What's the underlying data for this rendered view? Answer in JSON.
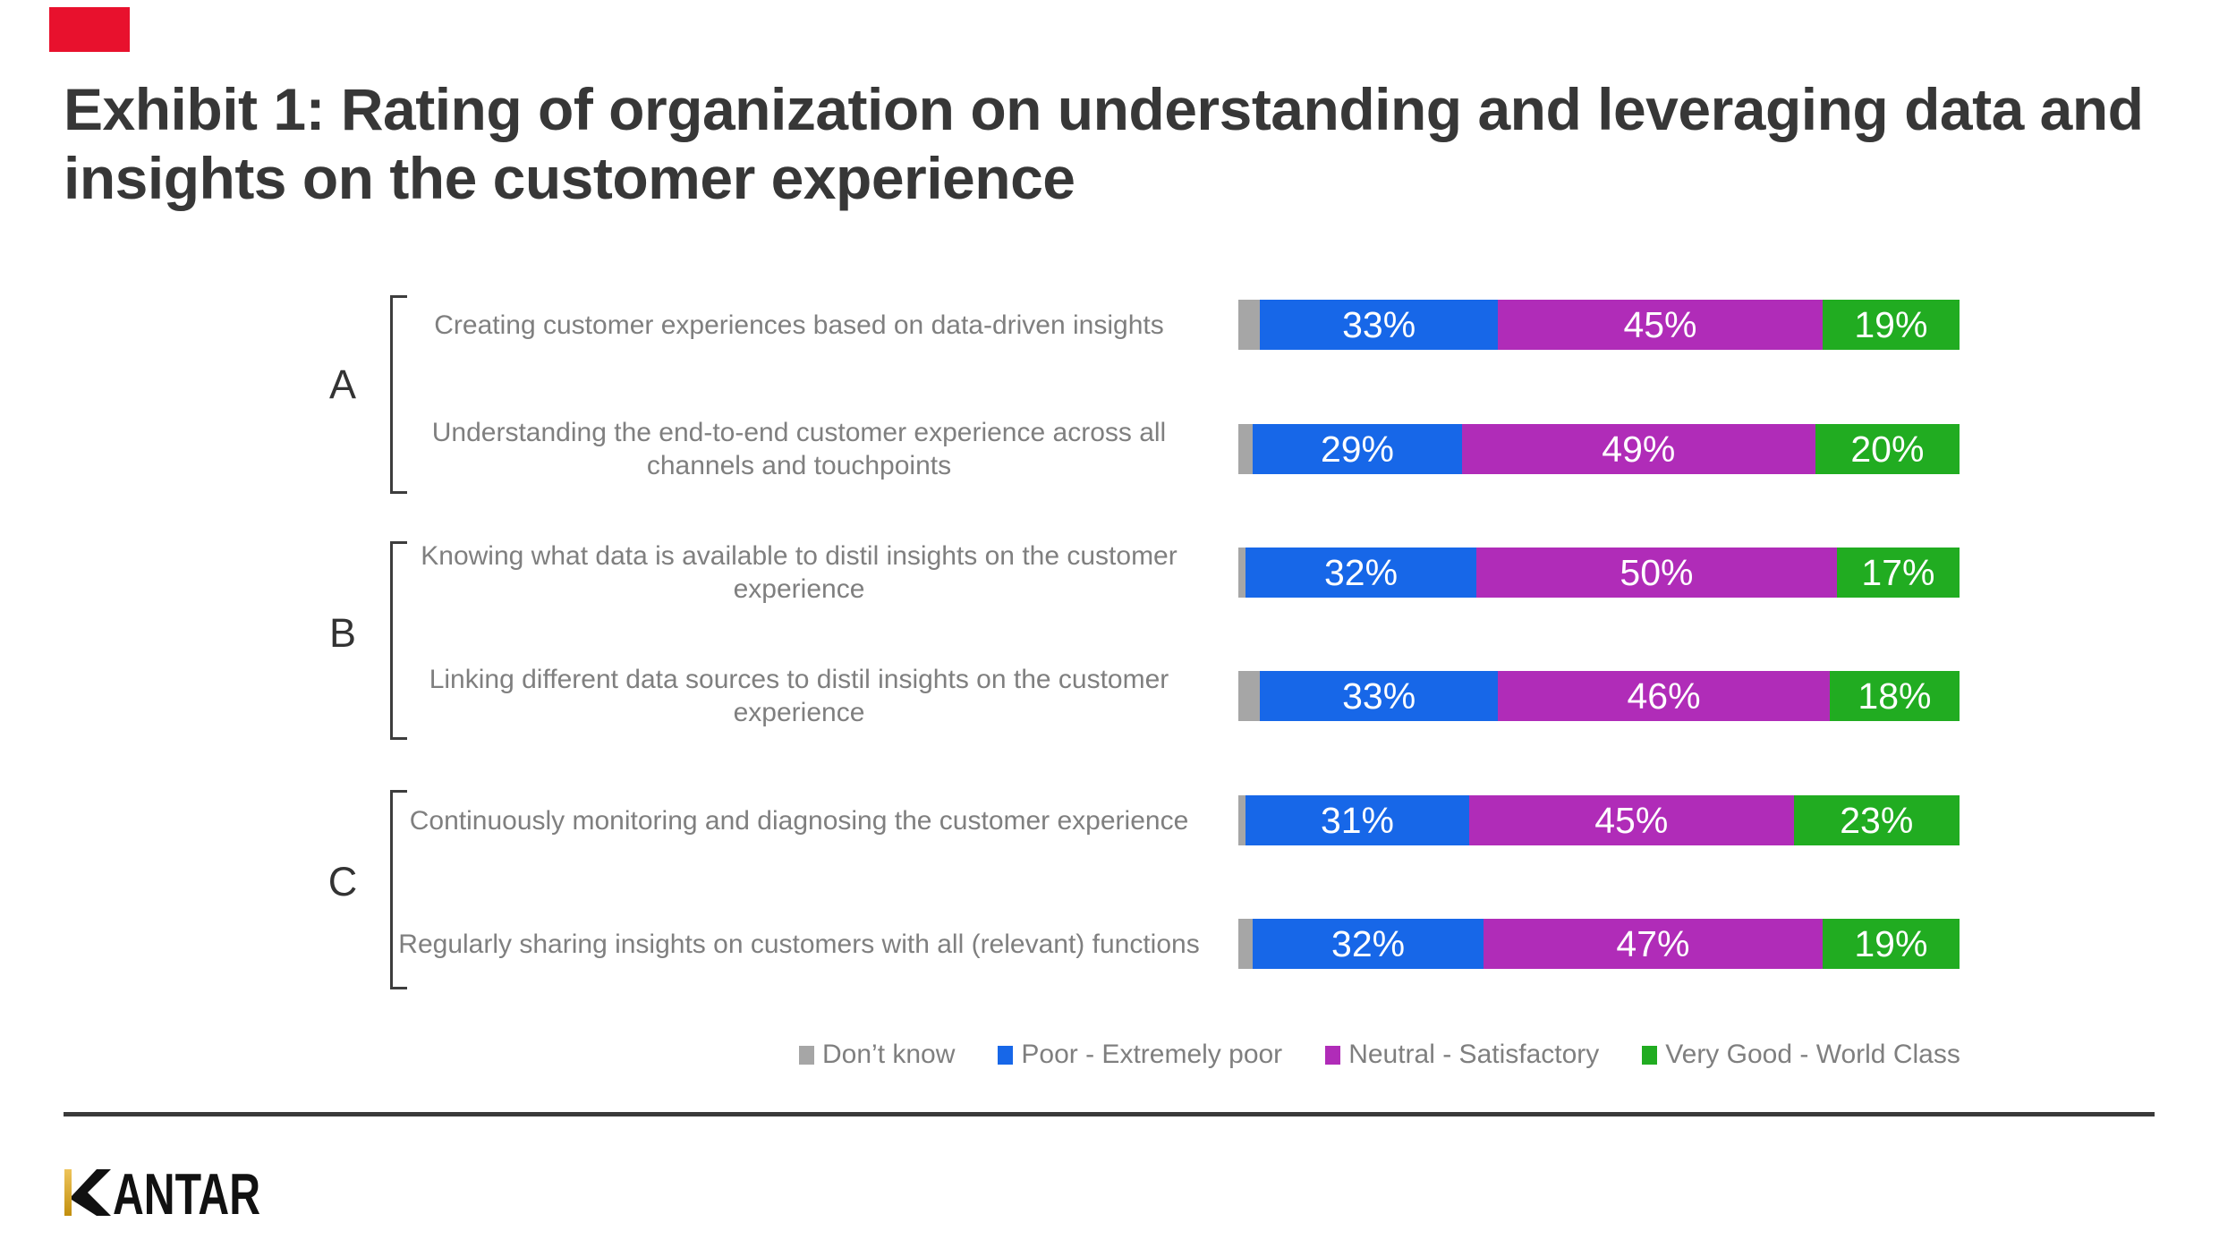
{
  "accent_colors": {
    "red_square": "#e8112d",
    "title_text": "#373737",
    "label_gray": "#7f7f7f",
    "rule_dark": "#3a3a3a",
    "logo_gold": "#d2a017"
  },
  "title": {
    "line1": "Exhibit 1: Rating of organization on understanding and leveraging data and",
    "line2": "insights on the customer experience"
  },
  "chart_data": {
    "type": "bar",
    "orientation": "horizontal",
    "stacked": true,
    "unit": "%",
    "value_suffix": "%",
    "axis_range": [
      0,
      100
    ],
    "grid": false,
    "legend_position": "bottom",
    "groups": [
      {
        "id": "A",
        "row_indexes": [
          0,
          1
        ]
      },
      {
        "id": "B",
        "row_indexes": [
          2,
          3
        ]
      },
      {
        "id": "C",
        "row_indexes": [
          4,
          5
        ]
      }
    ],
    "categories": [
      "Creating customer experiences based on data-driven insights",
      "Understanding the end-to-end customer experience across all channels and touchpoints",
      "Knowing what data is available to distil insights on the customer experience",
      "Linking different data sources to distil insights on the customer experience",
      "Continuously monitoring and diagnosing the customer experience",
      "Regularly sharing insights on customers with all (relevant) functions"
    ],
    "series": [
      {
        "name": "Don’t know",
        "color": "#a6a6a6",
        "show_value_labels": false,
        "values": [
          3,
          2,
          1,
          3,
          1,
          2
        ]
      },
      {
        "name": "Poor - Extremely poor",
        "color": "#1767e8",
        "show_value_labels": true,
        "values": [
          33,
          29,
          32,
          33,
          31,
          32
        ]
      },
      {
        "name": "Neutral - Satisfactory",
        "color": "#b02cb8",
        "show_value_labels": true,
        "values": [
          45,
          49,
          50,
          46,
          45,
          47
        ]
      },
      {
        "name": "Very Good - World Class",
        "color": "#21ac21",
        "show_value_labels": true,
        "values": [
          19,
          20,
          17,
          18,
          23,
          19
        ]
      }
    ]
  },
  "logo": {
    "text": "KANTAR"
  }
}
